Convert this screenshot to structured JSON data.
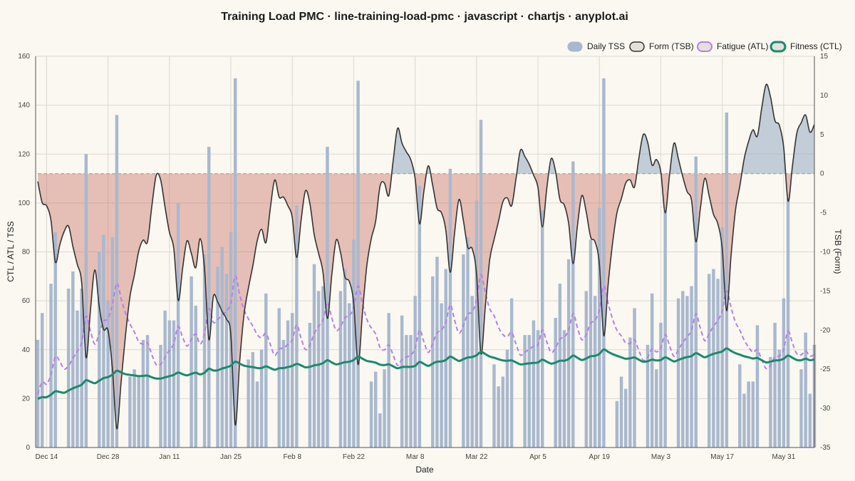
{
  "chart_data": {
    "type": "line",
    "title": "Training Load PMC · line-training-load-pmc · javascript · chartjs · anyplot.ai",
    "xlabel": "Date",
    "ylabel_left": "CTL / ATL / TSS",
    "ylabel_right": "TSB (Form)",
    "start_date": "Dec 12",
    "end_date": "Jun 11",
    "x_tick_labels": [
      "Dec 14",
      "Dec 28",
      "Jan 11",
      "Jan 25",
      "Feb 8",
      "Feb 22",
      "Mar 8",
      "Mar 22",
      "Apr 5",
      "Apr 19",
      "May 3",
      "May 17",
      "May 31"
    ],
    "ylim_left": [
      0,
      160
    ],
    "y_ticks_left": [
      "0",
      "20",
      "40",
      "60",
      "80",
      "100",
      "120",
      "140",
      "160"
    ],
    "ylim_right": [
      -35,
      15
    ],
    "y_ticks_right": [
      "-35",
      "-30",
      "-25",
      "-20",
      "-15",
      "-10",
      "-5",
      "0",
      "5",
      "10",
      "15"
    ],
    "grid": true,
    "legend_position": "top-right",
    "series": [
      {
        "name": "Daily TSS",
        "kind": "bar",
        "axis": "left",
        "color": "#A9B8CE",
        "values": [
          44,
          55,
          0,
          67,
          88,
          0,
          0,
          65,
          72,
          56,
          65,
          120,
          0,
          0,
          80,
          87,
          60,
          86,
          136,
          0,
          0,
          29,
          32,
          29,
          44,
          46,
          0,
          0,
          42,
          56,
          52,
          52,
          100,
          0,
          0,
          70,
          58,
          0,
          79,
          123,
          0,
          74,
          82,
          71,
          88,
          151,
          0,
          0,
          36,
          39,
          27,
          40,
          63,
          0,
          0,
          57,
          44,
          52,
          55,
          99,
          0,
          0,
          51,
          75,
          64,
          66,
          123,
          0,
          0,
          64,
          73,
          59,
          85,
          150,
          0,
          0,
          27,
          31,
          14,
          32,
          55,
          0,
          0,
          54,
          46,
          46,
          62,
          107,
          0,
          0,
          70,
          78,
          59,
          73,
          114,
          0,
          0,
          79,
          86,
          62,
          101,
          134,
          0,
          0,
          34,
          25,
          29,
          40,
          61,
          0,
          0,
          46,
          46,
          52,
          48,
          97,
          0,
          0,
          53,
          67,
          48,
          77,
          117,
          0,
          0,
          64,
          85,
          62,
          98,
          151,
          0,
          0,
          19,
          29,
          24,
          45,
          57,
          0,
          0,
          42,
          63,
          32,
          51,
          97,
          0,
          0,
          61,
          64,
          62,
          66,
          119,
          0,
          0,
          71,
          73,
          69,
          90,
          137,
          0,
          0,
          34,
          22,
          27,
          27,
          50,
          0,
          0,
          37,
          51,
          40,
          61,
          102,
          0,
          0,
          32,
          47,
          22,
          42
        ]
      },
      {
        "name": "Fatigue (ATL)",
        "kind": "line",
        "axis": "left",
        "color": "#B77FE6",
        "dashed": true,
        "values": [
          21.9,
          26.8,
          25.9,
          29.8,
          37.2,
          35.2,
          32.1,
          33.4,
          36.5,
          39.3,
          43.2,
          53.7,
          47.6,
          42.3,
          46.7,
          51.6,
          52.7,
          58.6,
          67.2,
          60.8,
          54.9,
          50.5,
          47.3,
          43.3,
          42.3,
          42.8,
          37.9,
          33.9,
          34.0,
          36.9,
          40.0,
          42.5,
          49.5,
          45.1,
          41.5,
          44.3,
          46.4,
          42.3,
          46.6,
          56.8,
          51.2,
          52.3,
          54.2,
          55.8,
          59.1,
          70.2,
          62.5,
          56.4,
          52.6,
          49.7,
          46.2,
          44.9,
          46.7,
          42.1,
          37.7,
          40.3,
          40.7,
          42.2,
          44.1,
          50.2,
          44.7,
          40.1,
          42.0,
          46.5,
          49.6,
          52.1,
          59.2,
          53.0,
          47.9,
          49.5,
          53.1,
          53.9,
          57.3,
          66.0,
          58.8,
          52.4,
          48.9,
          46.4,
          40.9,
          39.9,
          41.9,
          37.7,
          33.6,
          36.0,
          37.0,
          37.8,
          40.6,
          48.1,
          43.2,
          38.9,
          42.6,
          46.9,
          48.0,
          51.3,
          58.4,
          52.0,
          46.8,
          50.0,
          54.6,
          55.4,
          60.5,
          70.6,
          63.3,
          56.7,
          53.9,
          49.2,
          46.2,
          45.3,
          47.1,
          42.2,
          37.8,
          39.0,
          40.1,
          41.5,
          42.1,
          48.1,
          43.2,
          38.9,
          40.7,
          44.4,
          45.1,
          48.1,
          54.8,
          49.0,
          44.1,
          46.2,
          50.9,
          51.9,
          56.5,
          66.1,
          58.9,
          52.6,
          47.9,
          45.6,
          42.8,
          42.6,
          44.1,
          39.6,
          35.7,
          36.8,
          40.4,
          39.1,
          40.7,
          46.2,
          41.6,
          37.3,
          40.1,
          42.9,
          45.3,
          47.9,
          54.7,
          48.8,
          43.7,
          46.5,
          49.6,
          51.9,
          56.1,
          64.1,
          57.3,
          51.3,
          48.0,
          43.9,
          41.1,
          38.9,
          40.0,
          35.9,
          32.3,
          33.6,
          37.1,
          37.4,
          40.2,
          47.5,
          42.7,
          38.3,
          37.9,
          39.5,
          37.4,
          38.0
        ]
      },
      {
        "name": "Fitness (CTL)",
        "kind": "line",
        "axis": "left",
        "color": "#1A8A6E",
        "values": [
          19.9,
          20.6,
          20.6,
          21.6,
          23.0,
          22.7,
          22.4,
          23.3,
          24.2,
          24.9,
          25.7,
          27.5,
          26.9,
          26.3,
          27.3,
          28.4,
          28.8,
          29.8,
          31.4,
          30.7,
          30.0,
          29.7,
          29.5,
          29.2,
          29.3,
          29.4,
          28.7,
          28.2,
          28.2,
          28.7,
          29.2,
          29.7,
          30.7,
          30.0,
          29.5,
          30.1,
          30.6,
          29.9,
          30.6,
          32.2,
          31.5,
          31.6,
          32.3,
          32.8,
          33.5,
          35.1,
          34.3,
          33.5,
          33.1,
          32.9,
          32.5,
          32.5,
          33.2,
          32.5,
          31.8,
          32.4,
          32.5,
          32.9,
          33.4,
          34.2,
          33.6,
          32.8,
          33.0,
          33.6,
          33.9,
          34.5,
          35.7,
          34.8,
          34.0,
          34.4,
          34.9,
          35.1,
          35.8,
          37.2,
          36.3,
          35.4,
          35.1,
          34.7,
          33.9,
          33.7,
          34.0,
          33.2,
          32.4,
          32.9,
          33.0,
          33.0,
          33.4,
          35.0,
          34.2,
          33.4,
          34.3,
          35.1,
          35.2,
          35.8,
          37.2,
          36.3,
          35.4,
          36.1,
          36.8,
          37.0,
          37.7,
          39.1,
          38.2,
          37.2,
          36.7,
          36.1,
          35.6,
          35.5,
          35.6,
          34.8,
          34.0,
          34.2,
          34.4,
          34.6,
          34.8,
          35.9,
          35.1,
          34.3,
          34.7,
          35.5,
          35.5,
          36.2,
          37.6,
          36.7,
          35.8,
          36.4,
          37.3,
          37.5,
          38.3,
          40.1,
          39.1,
          38.2,
          37.5,
          36.9,
          36.3,
          36.5,
          36.8,
          35.9,
          35.1,
          35.3,
          35.9,
          35.6,
          35.8,
          36.9,
          36.1,
          35.2,
          35.8,
          36.5,
          37.0,
          37.4,
          38.6,
          37.8,
          36.9,
          37.6,
          38.3,
          38.8,
          39.3,
          40.5,
          39.5,
          38.6,
          38.0,
          37.3,
          36.9,
          36.4,
          36.6,
          35.7,
          34.8,
          35.1,
          35.6,
          35.7,
          36.3,
          37.6,
          36.7,
          35.8,
          35.7,
          36.3,
          35.7,
          36.0
        ]
      },
      {
        "name": "Form (TSB)",
        "kind": "area-line",
        "axis": "right",
        "color": "#333333",
        "values": [
          -1.0,
          -3.7,
          -4.1,
          -6.0,
          -11.3,
          -9.1,
          -7.4,
          -6.7,
          -9.3,
          -11.6,
          -14.0,
          -23.5,
          -17.4,
          -12.3,
          -17.0,
          -19.9,
          -20.0,
          -24.9,
          -32.6,
          -26.5,
          -20.6,
          -15.7,
          -13.0,
          -9.9,
          -8.5,
          -8.7,
          -4.1,
          -0.2,
          -0.8,
          -4.3,
          -7.5,
          -9.6,
          -16.2,
          -12.1,
          -8.6,
          -10.2,
          -12.0,
          -8.3,
          -12.2,
          -21.2,
          -15.7,
          -16.4,
          -17.6,
          -18.6,
          -20.6,
          -32.1,
          -24.1,
          -18.0,
          -14.6,
          -11.8,
          -8.6,
          -7.1,
          -8.8,
          -4.4,
          -0.8,
          -3.0,
          -3.0,
          -4.1,
          -5.6,
          -10.7,
          -6.0,
          -2.2,
          -3.8,
          -7.8,
          -10.2,
          -12.6,
          -18.5,
          -13.0,
          -8.5,
          -10.1,
          -13.2,
          -13.8,
          -16.5,
          -24.4,
          -17.7,
          -11.7,
          -8.3,
          -6.1,
          -1.6,
          -1.2,
          -2.8,
          1.7,
          5.8,
          3.9,
          2.8,
          1.8,
          -0.6,
          -6.4,
          -2.2,
          1.0,
          -1.5,
          -4.4,
          -5.0,
          -7.2,
          -12.6,
          -7.5,
          -3.3,
          -6.0,
          -9.4,
          -9.6,
          -12.9,
          -23.0,
          -16.9,
          -11.0,
          -8.4,
          -6.1,
          -3.6,
          -3.1,
          -4.1,
          -0.6,
          3.0,
          2.2,
          1.2,
          -0.2,
          -1.8,
          -6.8,
          -1.9,
          1.9,
          0.3,
          -3.3,
          -4.0,
          -6.4,
          -11.5,
          -6.6,
          -2.8,
          -4.9,
          -8.1,
          -8.7,
          -11.6,
          -20.7,
          -14.1,
          -8.9,
          -5.0,
          -3.2,
          -1.2,
          -0.8,
          -1.7,
          2.0,
          5.0,
          4.0,
          1.1,
          1.8,
          0.2,
          -5.0,
          -0.1,
          3.9,
          1.9,
          -0.4,
          -2.3,
          -3.4,
          -8.7,
          -4.5,
          -0.6,
          -2.8,
          -5.2,
          -6.4,
          -9.6,
          -17.5,
          -10.5,
          -4.7,
          -1.6,
          1.9,
          4.1,
          5.6,
          4.8,
          8.4,
          11.4,
          9.8,
          6.8,
          6.2,
          3.4,
          -3.5,
          1.0,
          5.2,
          6.5,
          7.5,
          5.3,
          6.3
        ]
      }
    ]
  }
}
